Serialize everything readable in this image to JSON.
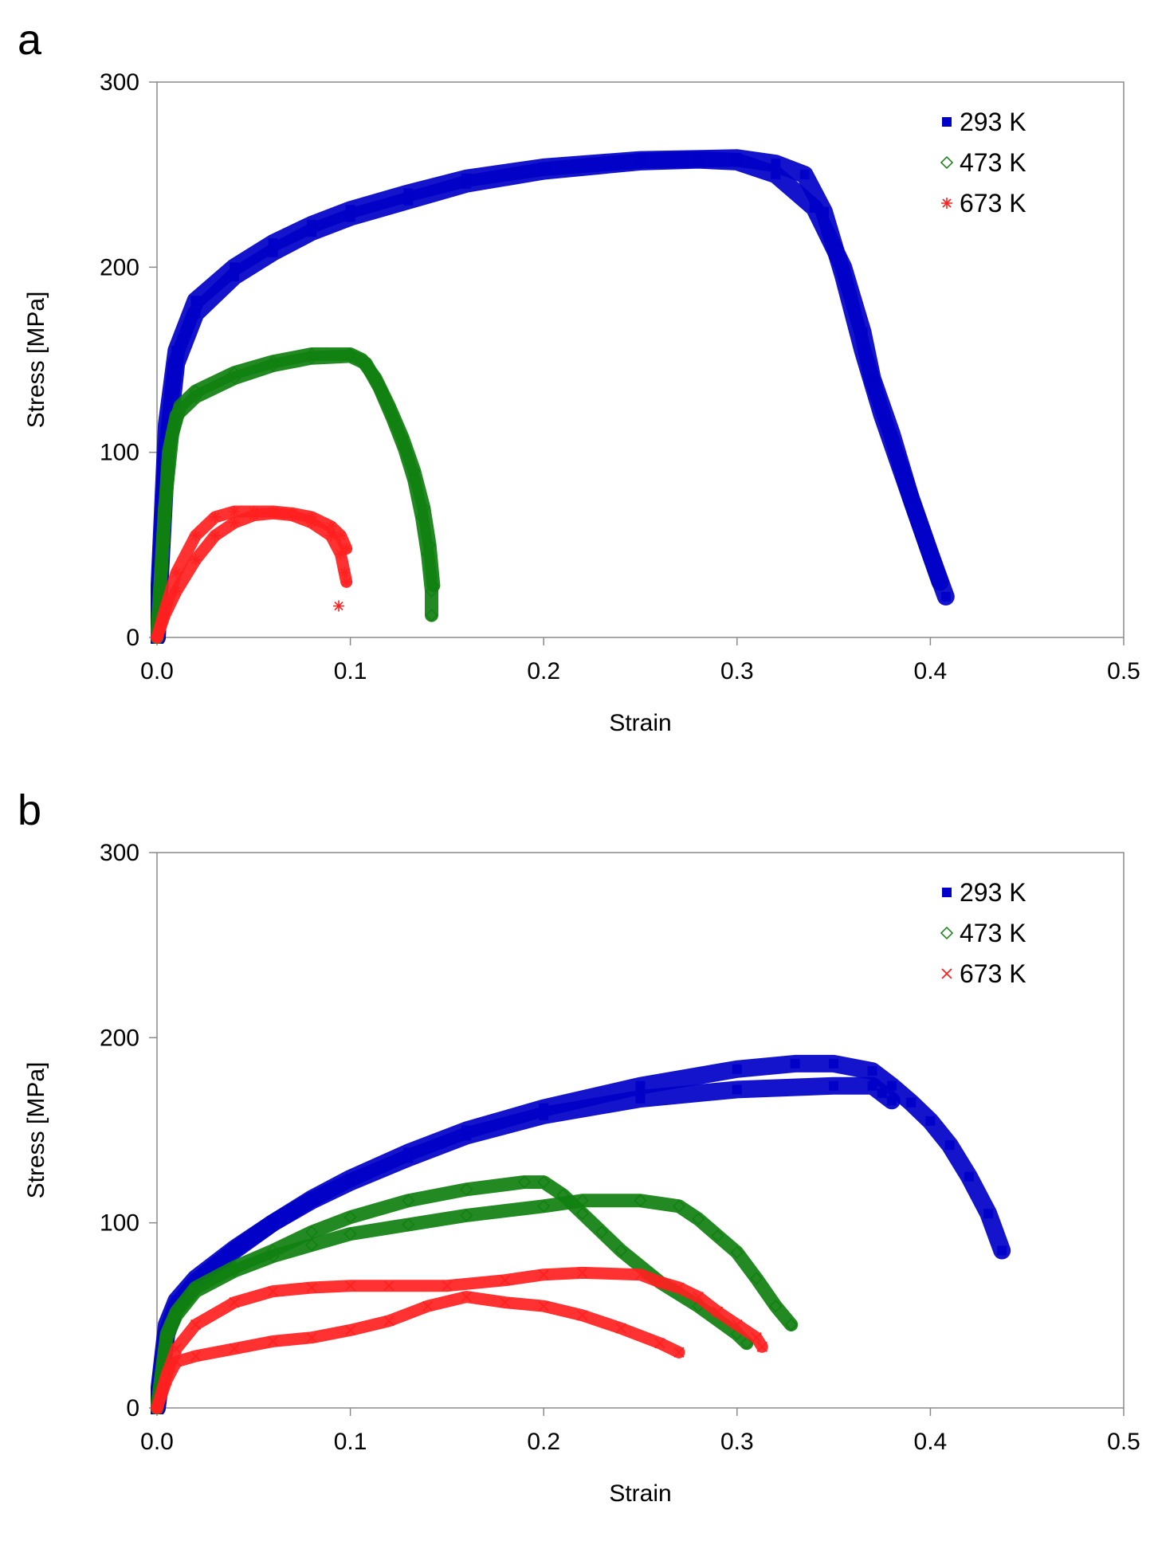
{
  "chart_data": [
    {
      "panel": "a",
      "type": "scatter",
      "title": "",
      "xlabel": "Strain",
      "ylabel": "Stress [MPa]",
      "xlim": [
        0,
        0.5
      ],
      "ylim": [
        0,
        300
      ],
      "xticks": [
        0,
        0.1,
        0.2,
        0.3,
        0.4,
        0.5
      ],
      "xtick_labels": [
        "0.0",
        "0.1",
        "0.2",
        "0.3",
        "0.4",
        "0.5"
      ],
      "yticks": [
        0,
        100,
        200,
        300
      ],
      "ytick_labels": [
        "0",
        "100",
        "200",
        "300"
      ],
      "grid": false,
      "legend_position": "top-right",
      "series": [
        {
          "name": "293 K",
          "color": "#0000c8",
          "marker": "square",
          "curves": [
            [
              [
                0,
                0
              ],
              [
                0.005,
                100
              ],
              [
                0.01,
                148
              ],
              [
                0.02,
                175
              ],
              [
                0.04,
                195
              ],
              [
                0.06,
                208
              ],
              [
                0.08,
                219
              ],
              [
                0.1,
                227
              ],
              [
                0.13,
                236
              ],
              [
                0.16,
                245
              ],
              [
                0.2,
                252
              ],
              [
                0.25,
                257
              ],
              [
                0.28,
                258
              ],
              [
                0.3,
                257
              ],
              [
                0.32,
                250
              ],
              [
                0.34,
                232
              ],
              [
                0.355,
                200
              ],
              [
                0.365,
                165
              ],
              [
                0.37,
                140
              ],
              [
                0.38,
                110
              ],
              [
                0.39,
                75
              ],
              [
                0.4,
                45
              ],
              [
                0.408,
                22
              ]
            ],
            [
              [
                0,
                0
              ],
              [
                0.005,
                115
              ],
              [
                0.01,
                155
              ],
              [
                0.02,
                182
              ],
              [
                0.04,
                200
              ],
              [
                0.06,
                213
              ],
              [
                0.08,
                223
              ],
              [
                0.1,
                231
              ],
              [
                0.13,
                240
              ],
              [
                0.16,
                248
              ],
              [
                0.2,
                254
              ],
              [
                0.25,
                258
              ],
              [
                0.3,
                259
              ],
              [
                0.32,
                256
              ],
              [
                0.335,
                250
              ],
              [
                0.345,
                230
              ],
              [
                0.355,
                195
              ],
              [
                0.365,
                155
              ],
              [
                0.375,
                120
              ],
              [
                0.385,
                90
              ],
              [
                0.395,
                60
              ],
              [
                0.405,
                30
              ]
            ]
          ]
        },
        {
          "name": "473 K",
          "color": "#108010",
          "marker": "diamond",
          "curves": [
            [
              [
                0,
                0
              ],
              [
                0.003,
                50
              ],
              [
                0.006,
                100
              ],
              [
                0.01,
                120
              ],
              [
                0.02,
                130
              ],
              [
                0.04,
                140
              ],
              [
                0.06,
                147
              ],
              [
                0.08,
                151
              ],
              [
                0.1,
                152
              ],
              [
                0.108,
                148
              ],
              [
                0.115,
                135
              ],
              [
                0.122,
                118
              ],
              [
                0.128,
                102
              ],
              [
                0.133,
                85
              ],
              [
                0.137,
                65
              ],
              [
                0.14,
                45
              ],
              [
                0.142,
                25
              ],
              [
                0.142,
                12
              ]
            ],
            [
              [
                0,
                0
              ],
              [
                0.004,
                70
              ],
              [
                0.008,
                110
              ],
              [
                0.012,
                125
              ],
              [
                0.02,
                133
              ],
              [
                0.04,
                143
              ],
              [
                0.06,
                149
              ],
              [
                0.08,
                153
              ],
              [
                0.1,
                153
              ],
              [
                0.106,
                150
              ],
              [
                0.113,
                140
              ],
              [
                0.12,
                125
              ],
              [
                0.127,
                108
              ],
              [
                0.133,
                90
              ],
              [
                0.138,
                70
              ],
              [
                0.141,
                50
              ],
              [
                0.143,
                28
              ]
            ]
          ]
        },
        {
          "name": "673 K",
          "color": "#ff2020",
          "marker": "asterisk",
          "curves": [
            [
              [
                0,
                0
              ],
              [
                0.004,
                12
              ],
              [
                0.01,
                25
              ],
              [
                0.02,
                42
              ],
              [
                0.03,
                55
              ],
              [
                0.04,
                62
              ],
              [
                0.05,
                66
              ],
              [
                0.06,
                67
              ],
              [
                0.07,
                66
              ],
              [
                0.08,
                62
              ],
              [
                0.09,
                55
              ],
              [
                0.095,
                45
              ],
              [
                0.097,
                35
              ],
              [
                0.098,
                30
              ]
            ],
            [
              [
                0,
                0
              ],
              [
                0.005,
                18
              ],
              [
                0.01,
                35
              ],
              [
                0.02,
                55
              ],
              [
                0.03,
                65
              ],
              [
                0.04,
                68
              ],
              [
                0.05,
                68
              ],
              [
                0.06,
                68
              ],
              [
                0.07,
                67
              ],
              [
                0.08,
                65
              ],
              [
                0.09,
                60
              ],
              [
                0.095,
                55
              ],
              [
                0.098,
                48
              ]
            ],
            [
              [
                0.094,
                17
              ]
            ]
          ]
        }
      ]
    },
    {
      "panel": "b",
      "type": "scatter",
      "title": "",
      "xlabel": "Strain",
      "ylabel": "Stress [MPa]",
      "xlim": [
        0,
        0.5
      ],
      "ylim": [
        0,
        300
      ],
      "xticks": [
        0,
        0.1,
        0.2,
        0.3,
        0.4,
        0.5
      ],
      "xtick_labels": [
        "0.0",
        "0.1",
        "0.2",
        "0.3",
        "0.4",
        "0.5"
      ],
      "yticks": [
        0,
        100,
        200,
        300
      ],
      "ytick_labels": [
        "0",
        "100",
        "200",
        "300"
      ],
      "grid": false,
      "legend_position": "top-right",
      "series": [
        {
          "name": "293 K",
          "color": "#0000c8",
          "marker": "square",
          "curves": [
            [
              [
                0,
                0
              ],
              [
                0.005,
                40
              ],
              [
                0.01,
                55
              ],
              [
                0.02,
                68
              ],
              [
                0.04,
                85
              ],
              [
                0.06,
                100
              ],
              [
                0.08,
                113
              ],
              [
                0.1,
                124
              ],
              [
                0.13,
                138
              ],
              [
                0.16,
                150
              ],
              [
                0.2,
                162
              ],
              [
                0.25,
                174
              ],
              [
                0.3,
                183
              ],
              [
                0.33,
                186
              ],
              [
                0.35,
                186
              ],
              [
                0.37,
                182
              ],
              [
                0.38,
                174
              ],
              [
                0.39,
                165
              ],
              [
                0.4,
                155
              ],
              [
                0.41,
                142
              ],
              [
                0.42,
                125
              ],
              [
                0.43,
                105
              ],
              [
                0.437,
                85
              ]
            ],
            [
              [
                0,
                0
              ],
              [
                0.005,
                45
              ],
              [
                0.01,
                58
              ],
              [
                0.02,
                70
              ],
              [
                0.04,
                86
              ],
              [
                0.06,
                100
              ],
              [
                0.08,
                112
              ],
              [
                0.1,
                122
              ],
              [
                0.13,
                135
              ],
              [
                0.16,
                147
              ],
              [
                0.2,
                158
              ],
              [
                0.25,
                167
              ],
              [
                0.3,
                172
              ],
              [
                0.35,
                174
              ],
              [
                0.37,
                174
              ],
              [
                0.375,
                170
              ],
              [
                0.38,
                166
              ]
            ]
          ]
        },
        {
          "name": "473 K",
          "color": "#108010",
          "marker": "diamond",
          "curves": [
            [
              [
                0,
                0
              ],
              [
                0.005,
                40
              ],
              [
                0.01,
                52
              ],
              [
                0.02,
                65
              ],
              [
                0.04,
                76
              ],
              [
                0.06,
                85
              ],
              [
                0.08,
                95
              ],
              [
                0.1,
                103
              ],
              [
                0.13,
                112
              ],
              [
                0.16,
                118
              ],
              [
                0.19,
                122
              ],
              [
                0.2,
                122
              ],
              [
                0.21,
                115
              ],
              [
                0.22,
                105
              ],
              [
                0.23,
                95
              ],
              [
                0.24,
                85
              ],
              [
                0.26,
                68
              ],
              [
                0.28,
                55
              ],
              [
                0.3,
                40
              ],
              [
                0.305,
                35
              ]
            ],
            [
              [
                0,
                0
              ],
              [
                0.005,
                38
              ],
              [
                0.01,
                50
              ],
              [
                0.02,
                63
              ],
              [
                0.04,
                74
              ],
              [
                0.06,
                82
              ],
              [
                0.08,
                88
              ],
              [
                0.1,
                94
              ],
              [
                0.13,
                99
              ],
              [
                0.16,
                104
              ],
              [
                0.2,
                109
              ],
              [
                0.22,
                112
              ],
              [
                0.25,
                112
              ],
              [
                0.27,
                109
              ],
              [
                0.28,
                102
              ],
              [
                0.29,
                93
              ],
              [
                0.3,
                84
              ],
              [
                0.31,
                70
              ],
              [
                0.32,
                55
              ],
              [
                0.328,
                45
              ]
            ]
          ]
        },
        {
          "name": "673 K",
          "color": "#ff2020",
          "marker": "x",
          "curves": [
            [
              [
                0,
                0
              ],
              [
                0.005,
                15
              ],
              [
                0.01,
                25
              ],
              [
                0.02,
                28
              ],
              [
                0.04,
                32
              ],
              [
                0.06,
                36
              ],
              [
                0.08,
                38
              ],
              [
                0.1,
                42
              ],
              [
                0.12,
                47
              ],
              [
                0.14,
                55
              ],
              [
                0.16,
                60
              ],
              [
                0.18,
                57
              ],
              [
                0.2,
                55
              ],
              [
                0.22,
                50
              ],
              [
                0.24,
                43
              ],
              [
                0.26,
                35
              ],
              [
                0.27,
                30
              ]
            ],
            [
              [
                0,
                0
              ],
              [
                0.005,
                18
              ],
              [
                0.01,
                32
              ],
              [
                0.02,
                45
              ],
              [
                0.04,
                57
              ],
              [
                0.06,
                63
              ],
              [
                0.08,
                65
              ],
              [
                0.1,
                66
              ],
              [
                0.12,
                66
              ],
              [
                0.15,
                66
              ],
              [
                0.18,
                69
              ],
              [
                0.2,
                72
              ],
              [
                0.22,
                73
              ],
              [
                0.25,
                72
              ],
              [
                0.26,
                68
              ],
              [
                0.27,
                65
              ],
              [
                0.28,
                60
              ],
              [
                0.29,
                52
              ],
              [
                0.3,
                45
              ],
              [
                0.31,
                38
              ],
              [
                0.313,
                33
              ]
            ]
          ]
        }
      ]
    }
  ],
  "panels": [
    {
      "label": "a"
    },
    {
      "label": "b"
    }
  ]
}
